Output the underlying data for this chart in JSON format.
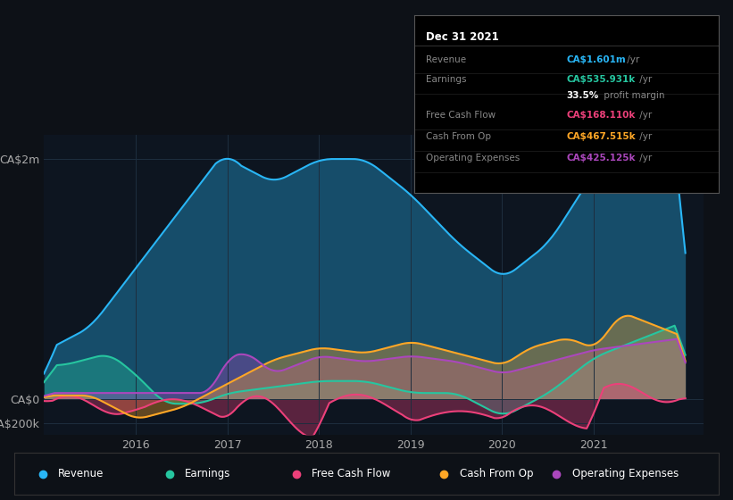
{
  "background_color": "#0d1117",
  "plot_bg_color": "#0d1520",
  "grid_color": "#1e2e3e",
  "y_labels": [
    "CA$2m",
    "CA$0",
    "-CA$200k"
  ],
  "y_ticks": [
    2000000,
    0,
    -200000
  ],
  "x_ticks": [
    2016,
    2017,
    2018,
    2019,
    2020,
    2021
  ],
  "colors": {
    "revenue": "#29b6f6",
    "earnings": "#26c6a0",
    "free_cash_flow": "#ec407a",
    "cash_from_op": "#ffa726",
    "operating_expenses": "#ab47bc"
  },
  "legend_items": [
    "Revenue",
    "Earnings",
    "Free Cash Flow",
    "Cash From Op",
    "Operating Expenses"
  ],
  "legend_colors": [
    "#29b6f6",
    "#26c6a0",
    "#ec407a",
    "#ffa726",
    "#ab47bc"
  ],
  "tooltip": {
    "date": "Dec 31 2021",
    "revenue_label": "Revenue",
    "revenue_val": "CA$1.601m",
    "revenue_unit": "/yr",
    "earnings_label": "Earnings",
    "earnings_val": "CA$535.931k",
    "earnings_unit": "/yr",
    "profit_margin": "33.5%",
    "profit_margin_text": " profit margin",
    "fcf_label": "Free Cash Flow",
    "fcf_val": "CA$168.110k",
    "fcf_unit": "/yr",
    "cop_label": "Cash From Op",
    "cop_val": "CA$467.515k",
    "cop_unit": "/yr",
    "opex_label": "Operating Expenses",
    "opex_val": "CA$425.125k",
    "opex_unit": "/yr"
  }
}
